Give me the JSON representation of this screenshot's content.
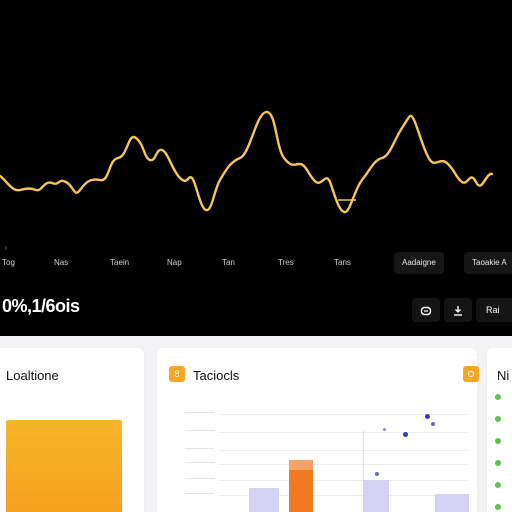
{
  "colors": {
    "accent": "#f5c45a",
    "orange": "#f5a623",
    "bar_orange": "#f07a22",
    "bar_lavender": "#d4d2f5",
    "dot_navy": "#3b3bb0",
    "side_green": "#5fbf52"
  },
  "hero": {
    "x_labels": [
      "Tog",
      "Nas",
      "Taein",
      "Nap",
      "Tan",
      "Tres",
      "Tans"
    ],
    "pill_left": "Aadaigne",
    "pill_right": "Taoakie A",
    "big_stat": "0%,1/6ois",
    "icons": [
      "message-icon",
      "download-icon"
    ],
    "text_btn": "Rai"
  },
  "cards": {
    "left_title": "Loaltione",
    "middle_title": "Taciocls",
    "middle_badge": "8",
    "right_title": "Ni",
    "right_badge": ""
  },
  "middle_chart": {
    "y_ticks": [
      "—————",
      "—————",
      "—————",
      "—————",
      "—————",
      "—————"
    ]
  }
}
